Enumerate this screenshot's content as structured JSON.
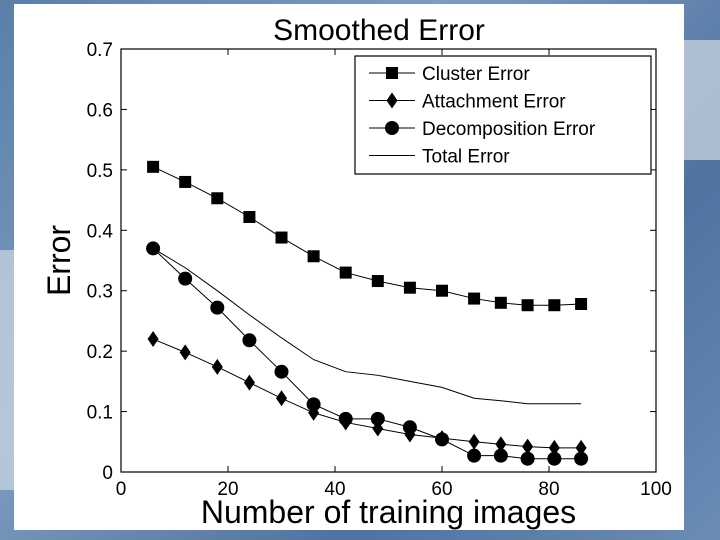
{
  "chart_data": {
    "type": "line",
    "title": "Smoothed Error",
    "xlabel": "Number of training images",
    "ylabel": "Error",
    "xlim": [
      0,
      100
    ],
    "ylim": [
      0,
      0.7
    ],
    "xticks": [
      0,
      20,
      40,
      60,
      80,
      100
    ],
    "yticks": [
      0,
      0.1,
      0.2,
      0.3,
      0.4,
      0.5,
      0.6,
      0.7
    ],
    "grid": false,
    "legend_position": "top-right",
    "x": [
      6,
      12,
      18,
      24,
      30,
      36,
      42,
      48,
      54,
      60,
      66,
      71,
      76,
      81,
      86
    ],
    "series": [
      {
        "name": "Cluster Error",
        "marker": "square",
        "values": [
          0.505,
          0.48,
          0.453,
          0.422,
          0.388,
          0.357,
          0.33,
          0.316,
          0.305,
          0.3,
          0.287,
          0.28,
          0.276,
          0.276,
          0.278
        ]
      },
      {
        "name": "Attachment Error",
        "marker": "diamond",
        "values": [
          0.22,
          0.198,
          0.174,
          0.148,
          0.122,
          0.098,
          0.082,
          0.072,
          0.062,
          0.056,
          0.05,
          0.046,
          0.042,
          0.04,
          0.04
        ]
      },
      {
        "name": "Decomposition Error",
        "marker": "circle",
        "values": [
          0.37,
          0.32,
          0.272,
          0.218,
          0.166,
          0.112,
          0.088,
          0.088,
          0.074,
          0.054,
          0.027,
          0.027,
          0.022,
          0.022,
          0.022
        ]
      },
      {
        "name": "Total Error",
        "marker": "none",
        "values": [
          0.37,
          0.338,
          0.3,
          0.26,
          0.222,
          0.186,
          0.166,
          0.16,
          0.15,
          0.14,
          0.122,
          0.118,
          0.113,
          0.113,
          0.113
        ]
      }
    ]
  }
}
